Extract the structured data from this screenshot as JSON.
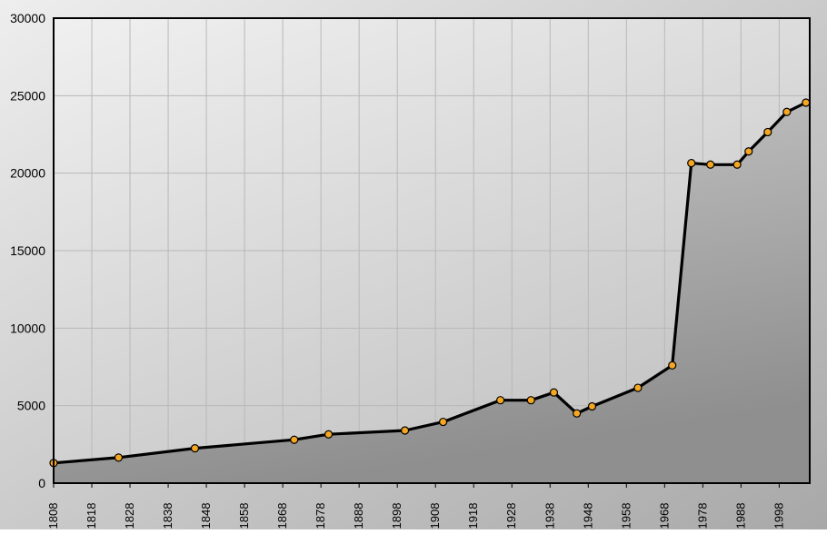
{
  "chart_data": {
    "type": "area",
    "title": "",
    "xlabel": "",
    "ylabel": "",
    "xlim": [
      1808,
      2006
    ],
    "ylim": [
      0,
      30000
    ],
    "grid": true,
    "legend": "none",
    "x_ticks": [
      "1808",
      "1818",
      "1828",
      "1838",
      "1848",
      "1858",
      "1868",
      "1878",
      "1888",
      "1898",
      "1908",
      "1918",
      "1928",
      "1938",
      "1948",
      "1958",
      "1968",
      "1978",
      "1988",
      "1998"
    ],
    "y_ticks": [
      "0",
      "5000",
      "10000",
      "15000",
      "20000",
      "25000",
      "30000"
    ],
    "series": [
      {
        "x": [
          1808,
          1825,
          1845,
          1871,
          1880,
          1900,
          1910,
          1925,
          1933,
          1939,
          1945,
          1949,
          1961,
          1970,
          1975,
          1980,
          1987,
          1990,
          1995,
          2000,
          2005
        ],
        "y": [
          1300,
          1650,
          2250,
          2800,
          3150,
          3400,
          3950,
          5350,
          5350,
          5850,
          4500,
          4950,
          6150,
          7600,
          20650,
          20550,
          20550,
          21400,
          22650,
          23950,
          24550
        ]
      }
    ],
    "colors": {
      "line": "#000000",
      "marker_fill": "#f5a623",
      "marker_stroke": "#000000",
      "area_top": "#c9c9c9",
      "area_bottom": "#8f8f8f",
      "plot_top": "#f0f0f0",
      "plot_bottom": "#c4c4c4",
      "frame_left": "#eeeeee",
      "frame_right": "#a8a8a8",
      "grid": "#b8b8b8"
    }
  }
}
